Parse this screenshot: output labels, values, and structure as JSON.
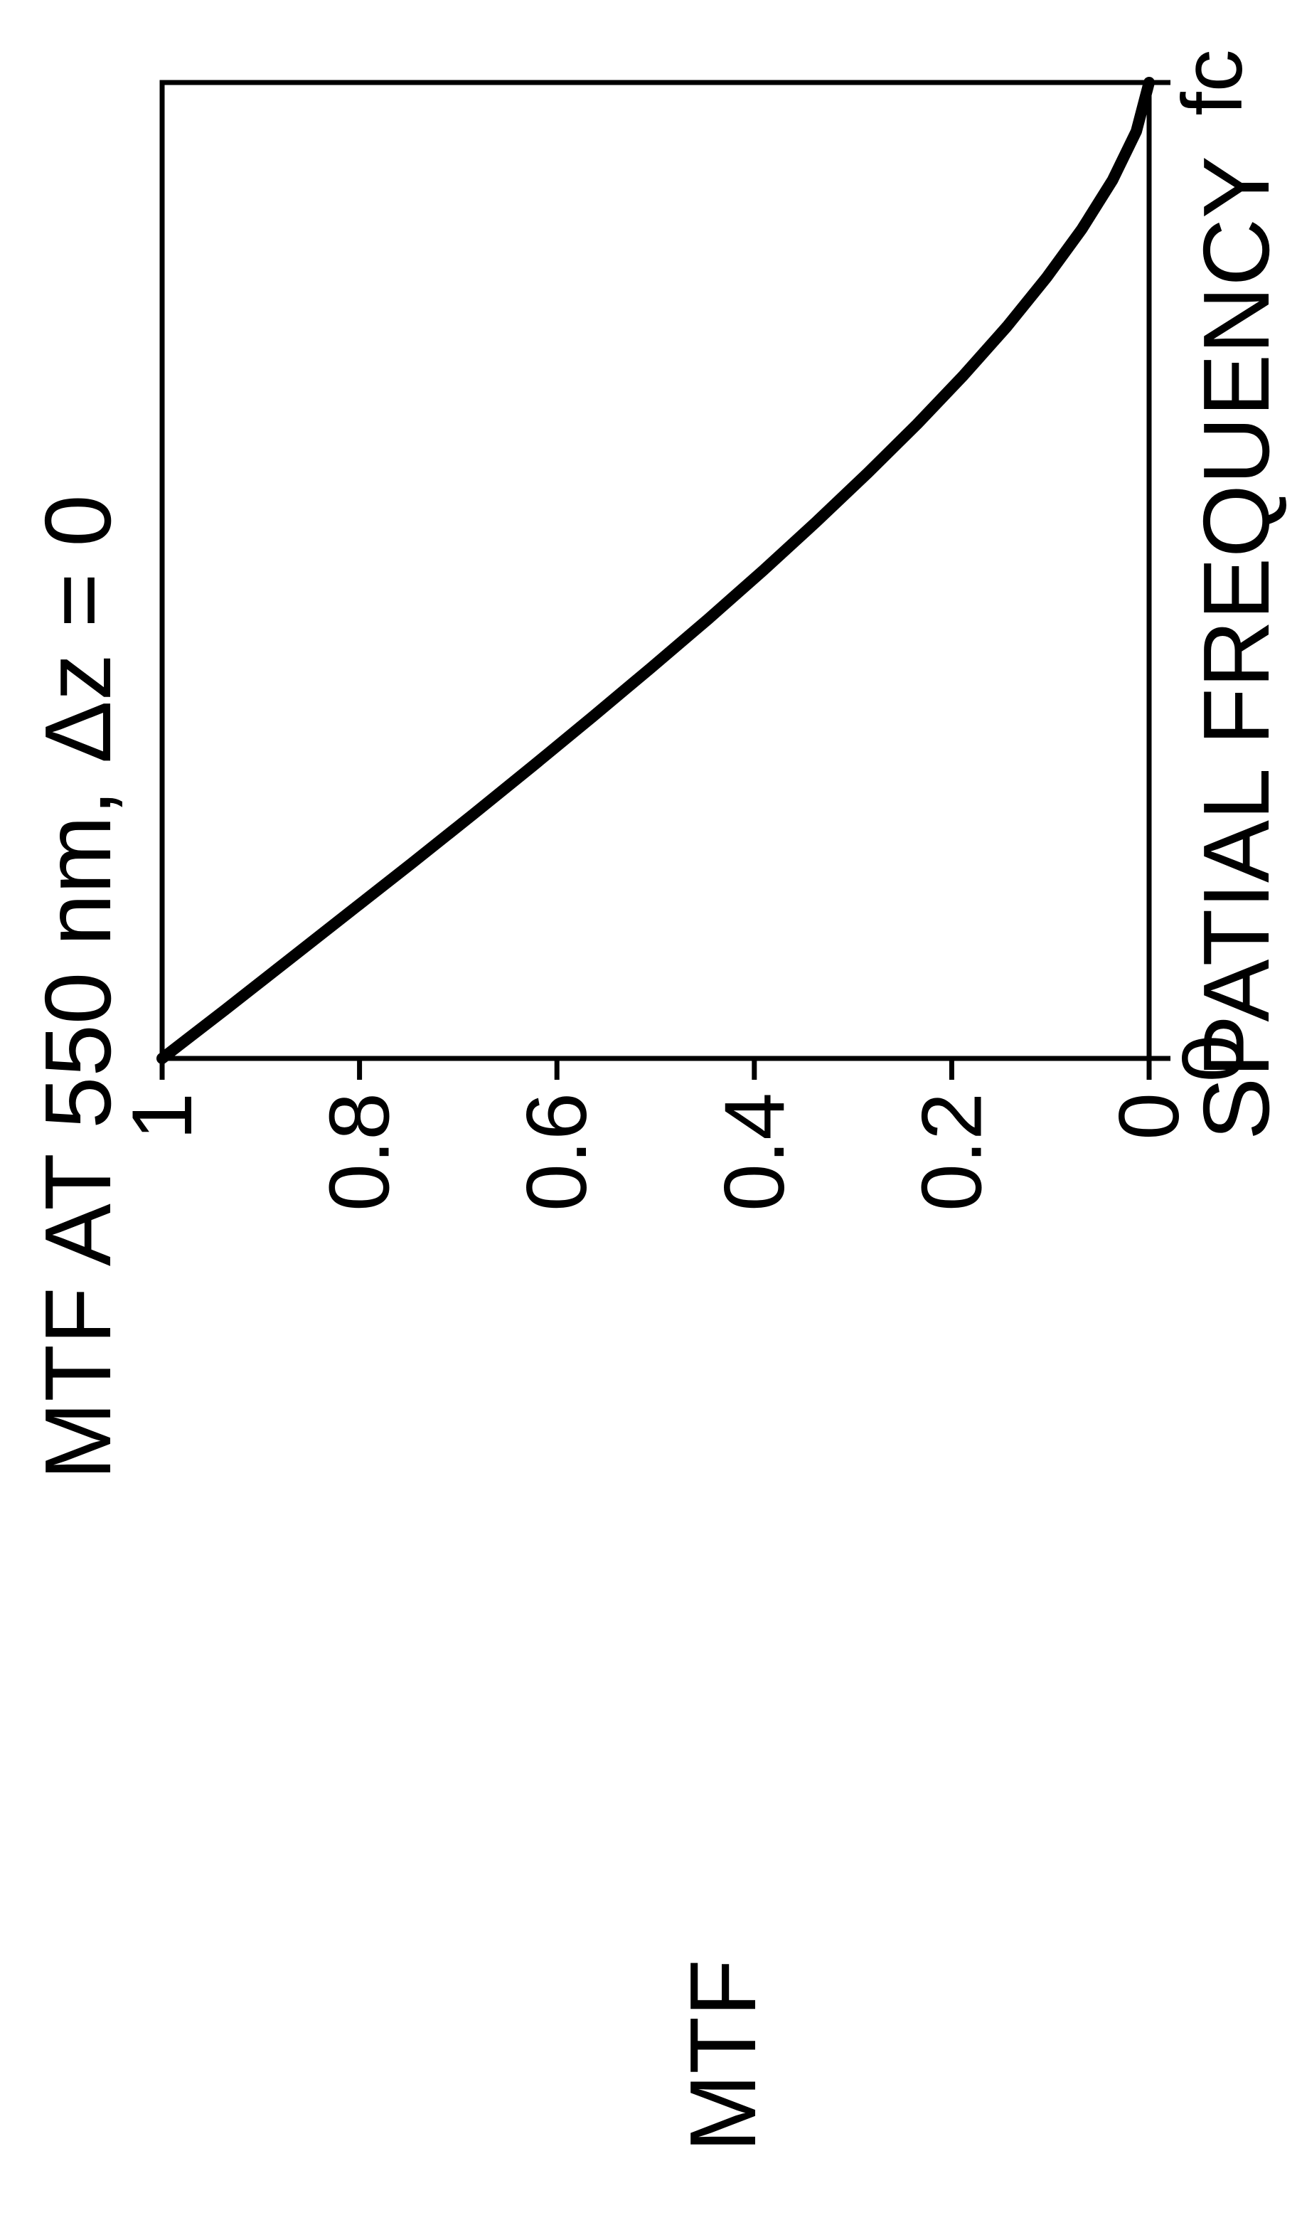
{
  "chart_data": {
    "type": "line",
    "title": "MTF AT 550 nm, Δz = 0",
    "xlabel": "SPATIAL FREQUENCY",
    "ylabel": "MTF",
    "x_tick_labels": [
      "0",
      "fc"
    ],
    "y_tick_labels": [
      "0",
      "0.2",
      "0.4",
      "0.6",
      "0.8",
      "1"
    ],
    "xlim": [
      0,
      1
    ],
    "ylim": [
      0,
      1
    ],
    "grid": false,
    "legend": "none",
    "orientation": "rotated 90 degrees counter-clockwise",
    "series": [
      {
        "x": [
          0,
          0.05,
          0.1,
          0.15,
          0.2,
          0.25,
          0.3,
          0.35,
          0.4,
          0.45,
          0.5,
          0.55,
          0.6,
          0.65,
          0.7,
          0.75,
          0.8,
          0.85,
          0.9,
          0.95,
          1.0
        ],
        "values": [
          1.0,
          0.936,
          0.873,
          0.81,
          0.747,
          0.685,
          0.624,
          0.564,
          0.505,
          0.447,
          0.391,
          0.337,
          0.285,
          0.235,
          0.188,
          0.144,
          0.104,
          0.068,
          0.037,
          0.013,
          0.0
        ],
        "color": "#000000"
      }
    ]
  }
}
